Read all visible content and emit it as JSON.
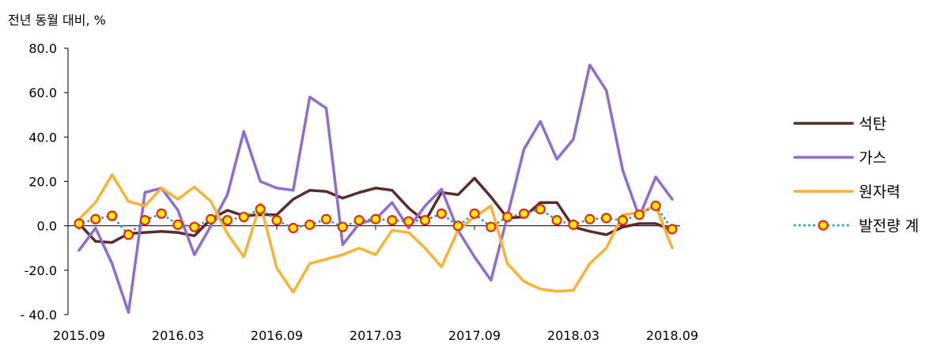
{
  "chart_data": {
    "type": "line",
    "ylabel": "전년 동월 대비, %",
    "ylim": [
      -40,
      80
    ],
    "yticks": [
      -40,
      -20,
      0,
      20,
      40,
      60,
      80
    ],
    "ytick_labels": [
      "- 40.0",
      "-20.0",
      "0.0",
      "20.0",
      "40.0",
      "60.0",
      "80.0"
    ],
    "xtick_labels": [
      "2015.09",
      "2016.03",
      "2016.09",
      "2017.03",
      "2017.09",
      "2018.03",
      "2018.09"
    ],
    "x": [
      "2015.09",
      "2015.10",
      "2015.11",
      "2015.12",
      "2016.01",
      "2016.02",
      "2016.03",
      "2016.04",
      "2016.05",
      "2016.06",
      "2016.07",
      "2016.08",
      "2016.09",
      "2016.10",
      "2016.11",
      "2016.12",
      "2017.01",
      "2017.02",
      "2017.03",
      "2017.04",
      "2017.05",
      "2017.06",
      "2017.07",
      "2017.08",
      "2017.09",
      "2017.10",
      "2017.11",
      "2017.12",
      "2018.01",
      "2018.02",
      "2018.03",
      "2018.04",
      "2018.05",
      "2018.06",
      "2018.07",
      "2018.08",
      "2018.09"
    ],
    "legend_position": "right",
    "grid": false,
    "series": [
      {
        "name": "석탄",
        "color": "#5a2c29",
        "style": "solid",
        "values": [
          1.0,
          -7.0,
          -7.5,
          -3.5,
          -3.0,
          -2.5,
          -3.0,
          -4.5,
          3.0,
          7.0,
          4.5,
          5.0,
          5.0,
          12.0,
          16.0,
          15.5,
          12.5,
          15.0,
          17.0,
          16.0,
          8.0,
          2.0,
          15.0,
          14.0,
          21.5,
          13.0,
          3.5,
          4.0,
          10.5,
          10.5,
          -0.5,
          -2.5,
          -4.0,
          -0.5,
          1.0,
          1.0,
          -2.0
        ]
      },
      {
        "name": "가스",
        "color": "#8e6cd1",
        "style": "solid",
        "values": [
          -11.0,
          -1.0,
          -17.0,
          -39.0,
          15.0,
          17.0,
          7.0,
          -13.0,
          0.0,
          14.0,
          42.5,
          20.0,
          17.0,
          16.0,
          58.0,
          53.0,
          -8.5,
          1.0,
          3.0,
          10.5,
          -1.0,
          9.0,
          16.5,
          -2.0,
          -14.0,
          -24.5,
          4.5,
          34.5,
          47.0,
          30.0,
          39.0,
          72.5,
          61.0,
          25.0,
          4.0,
          22.0,
          12.0
        ]
      },
      {
        "name": "원자력",
        "color": "#f9b233",
        "style": "solid",
        "values": [
          3.0,
          10.5,
          23.0,
          11.0,
          9.0,
          17.0,
          12.0,
          17.5,
          11.0,
          -3.5,
          -14.0,
          10.0,
          -19.0,
          -30.0,
          -17.0,
          -15.0,
          -13.0,
          -10.0,
          -13.0,
          -2.0,
          -3.0,
          -10.0,
          -18.5,
          -2.0,
          4.0,
          9.0,
          -17.0,
          -25.0,
          -28.5,
          -29.5,
          -29.0,
          -17.0,
          -10.0,
          5.0,
          6.0,
          9.0,
          -10.0
        ]
      },
      {
        "name": "발전량 계",
        "color": "#2aa3a8",
        "style": "dotted",
        "marker_fill": "#ffee00",
        "marker_edge": "#e8241d",
        "values": [
          1.0,
          3.0,
          4.5,
          -4.0,
          2.5,
          5.5,
          0.5,
          -0.5,
          3.0,
          2.5,
          4.0,
          7.5,
          2.5,
          -1.0,
          0.5,
          3.0,
          -0.5,
          2.5,
          3.0,
          2.5,
          2.0,
          2.5,
          5.5,
          0.0,
          5.5,
          -0.5,
          4.0,
          5.5,
          7.5,
          2.5,
          0.5,
          3.0,
          3.5,
          2.5,
          5.0,
          9.0,
          -1.5
        ]
      }
    ]
  }
}
